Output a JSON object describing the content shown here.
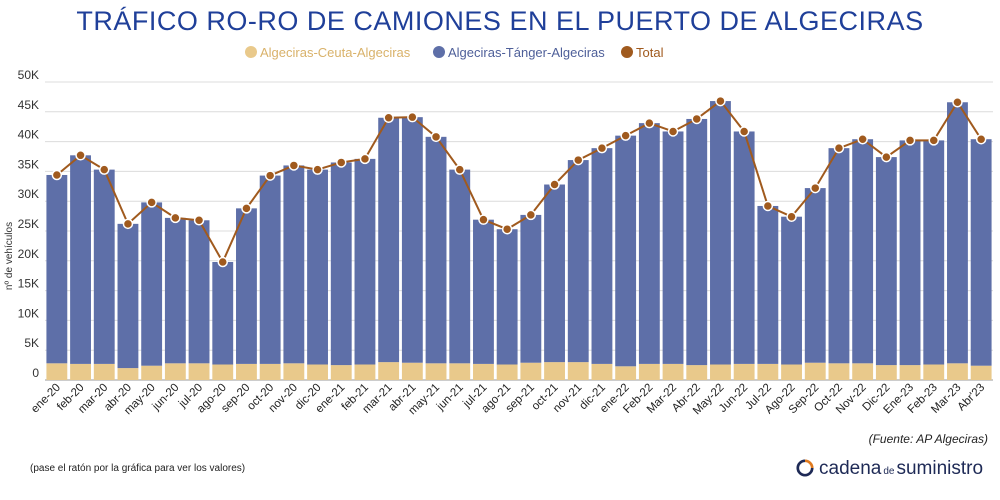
{
  "chart_data": {
    "type": "bar",
    "title": "TRÁFICO RO-RO DE CAMIONES EN EL PUERTO DE ALGECIRAS",
    "ylabel": "nº de vehículos",
    "ylim": [
      0,
      50000
    ],
    "yticks": [
      "0",
      "5K",
      "10K",
      "15K",
      "20K",
      "25K",
      "30K",
      "35K",
      "40K",
      "45K",
      "50K"
    ],
    "ytick_values": [
      0,
      5000,
      10000,
      15000,
      20000,
      25000,
      30000,
      35000,
      40000,
      45000,
      50000
    ],
    "legend_position": "top-center",
    "grid": true,
    "categories": [
      "ene-20",
      "feb-20",
      "mar-20",
      "abr-20",
      "may-20",
      "jun-20",
      "jul-20",
      "ago-20",
      "sep-20",
      "oct-20",
      "nov-20",
      "dic-20",
      "ene-21",
      "feb-21",
      "mar-21",
      "abr-21",
      "may-21",
      "jun-21",
      "jul-21",
      "ago-21",
      "sep-21",
      "oct-21",
      "nov-21",
      "dic-21",
      "ene-22",
      "Feb-22",
      "Mar-22",
      "Abr-22",
      "May-22",
      "Jun-22",
      "Jul-22",
      "Ago-22",
      "Sep-22",
      "Oct-22",
      "Nov-22",
      "Dic-22",
      "Ene-23",
      "Feb-23",
      "Mar-23",
      "Abr'23"
    ],
    "series": [
      {
        "name": "Algeciras-Ceuta-Algeciras",
        "kind": "bar-stacked",
        "color": "#e9c98b",
        "values": [
          2800,
          2700,
          2700,
          2000,
          2400,
          2800,
          2800,
          2600,
          2700,
          2700,
          2800,
          2600,
          2500,
          2600,
          3000,
          2900,
          2800,
          2800,
          2700,
          2600,
          2900,
          3000,
          3000,
          2700,
          2300,
          2700,
          2700,
          2500,
          2600,
          2700,
          2700,
          2600,
          2900,
          2800,
          2800,
          2500,
          2500,
          2600,
          2800,
          2400
        ]
      },
      {
        "name": "Algeciras-Tánger-Algeciras",
        "kind": "bar-stacked",
        "color": "#5e6fa8",
        "values": [
          31600,
          35000,
          32600,
          24200,
          27400,
          24400,
          24000,
          17200,
          26100,
          31600,
          33200,
          32700,
          34000,
          34500,
          41000,
          41200,
          38000,
          32500,
          24200,
          22700,
          24800,
          29800,
          33900,
          36200,
          38700,
          40400,
          39000,
          41300,
          44200,
          39000,
          26500,
          24800,
          29300,
          36100,
          37600,
          34900,
          37700,
          37600,
          43800,
          38000
        ]
      },
      {
        "name": "Total",
        "kind": "line",
        "color": "#a05a1e",
        "values": [
          34400,
          37700,
          35300,
          26200,
          29800,
          27200,
          26800,
          19800,
          28800,
          34300,
          36000,
          35300,
          36500,
          37100,
          44000,
          44100,
          40800,
          35300,
          26900,
          25300,
          27700,
          32800,
          36900,
          38900,
          41000,
          43100,
          41700,
          43800,
          46800,
          41700,
          29200,
          27400,
          32200,
          38900,
          40400,
          37400,
          40200,
          40200,
          46600,
          40400
        ]
      }
    ]
  },
  "source": "(Fuente: AP Algeciras)",
  "hint": "(pase el ratón por la gráfica para ver los valores)",
  "brand": {
    "part1": "cadena",
    "part2": "de",
    "part3": "suministro"
  }
}
